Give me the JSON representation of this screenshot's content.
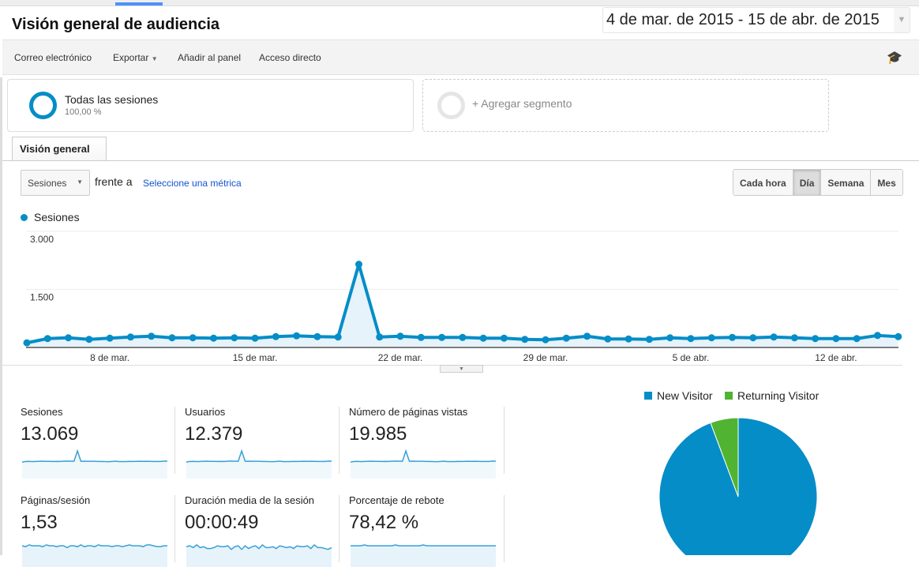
{
  "header": {
    "title": "Visión general de audiencia",
    "date_range": "4 de mar. de 2015 - 15 de abr. de 2015"
  },
  "toolbar": {
    "email": "Correo electrónico",
    "export": "Exportar",
    "add_dashboard": "Añadir al panel",
    "shortcut": "Acceso directo",
    "help_icon": "graduation-cap-icon"
  },
  "segments": [
    {
      "name": "Todas las sesiones",
      "pct": "100,00 %"
    },
    {
      "name": "+ Agregar segmento"
    }
  ],
  "tab": "Visión general",
  "controls": {
    "metric": "Sesiones",
    "versus": "frente a",
    "select_metric": "Seleccione una métrica",
    "granularity": [
      "Cada hora",
      "Día",
      "Semana",
      "Mes"
    ],
    "selected": "Día"
  },
  "colors": {
    "primary": "#058dc7",
    "secondary": "#50b432"
  },
  "chart_data": {
    "type": "line",
    "title": "",
    "legend": [
      "Sesiones"
    ],
    "ylim": [
      0,
      3000
    ],
    "yticks": [
      "1.500",
      "3.000"
    ],
    "ytick_values": [
      1500,
      3000
    ],
    "xticks": [
      {
        "label": "8 de mar.",
        "index": 4
      },
      {
        "label": "15 de mar.",
        "index": 11
      },
      {
        "label": "22 de mar.",
        "index": 18
      },
      {
        "label": "29 de mar.",
        "index": 25
      },
      {
        "label": "5 de abr.",
        "index": 32
      },
      {
        "label": "12 de abr.",
        "index": 39
      }
    ],
    "x_range": "4 mar 2015 - 15 abr 2015 (daily)",
    "values": [
      120,
      230,
      250,
      210,
      240,
      270,
      290,
      250,
      250,
      240,
      250,
      240,
      280,
      300,
      280,
      270,
      2150,
      270,
      290,
      260,
      260,
      260,
      240,
      240,
      210,
      200,
      240,
      290,
      220,
      220,
      210,
      250,
      230,
      250,
      260,
      250,
      270,
      250,
      230,
      230,
      230,
      310,
      280
    ]
  },
  "metrics": [
    {
      "label": "Sesiones",
      "value": "13.069",
      "spark": "sessions"
    },
    {
      "label": "Usuarios",
      "value": "12.379",
      "spark": "sessions"
    },
    {
      "label": "Número de páginas vistas",
      "value": "19.985",
      "spark": "sessions"
    },
    {
      "label": "Páginas/sesión",
      "value": "1,53",
      "spark": [
        6,
        5,
        7,
        6,
        6,
        6,
        5,
        7,
        6,
        6,
        5,
        6,
        6,
        4,
        6,
        6,
        5,
        7,
        5,
        6,
        6,
        5,
        7,
        6,
        6,
        6,
        5,
        6,
        6,
        5,
        6,
        7,
        6,
        6,
        6,
        5,
        7,
        7,
        6,
        5,
        5,
        6,
        6
      ]
    },
    {
      "label": "Duración media de la sesión",
      "value": "00:00:49",
      "spark": [
        5,
        6,
        4,
        7,
        4,
        5,
        3,
        3,
        4,
        6,
        5,
        5,
        6,
        2,
        5,
        6,
        2,
        6,
        3,
        5,
        6,
        3,
        7,
        4,
        4,
        5,
        3,
        6,
        5,
        4,
        5,
        3,
        6,
        5,
        5,
        6,
        3,
        7,
        4,
        4,
        3,
        2,
        4
      ]
    },
    {
      "label": "Porcentaje de rebote",
      "value": "78,42 %",
      "spark": [
        6,
        6,
        6,
        6,
        7,
        6,
        6,
        6,
        6,
        6,
        6,
        6,
        6,
        7,
        6,
        6,
        6,
        6,
        6,
        6,
        6,
        7,
        6,
        6,
        6,
        6,
        6,
        6,
        6,
        6,
        6,
        6,
        6,
        6,
        6,
        6,
        6,
        6,
        6,
        6,
        6,
        6,
        6
      ]
    }
  ],
  "pie": {
    "legend": [
      "New Visitor",
      "Returning Visitor"
    ],
    "values": [
      94.3,
      5.7
    ]
  }
}
